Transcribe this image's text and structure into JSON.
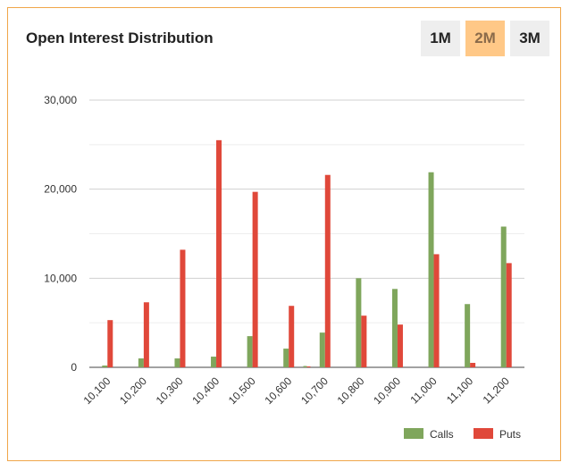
{
  "header": {
    "title": "Open Interest Distribution",
    "ranges": [
      {
        "label": "1M",
        "active": false
      },
      {
        "label": "2M",
        "active": true
      },
      {
        "label": "3M",
        "active": false
      }
    ]
  },
  "colors": {
    "calls": "#7fa65c",
    "puts": "#e0483a",
    "accent": "#f0a64a",
    "active_range_bg": "#ffc887"
  },
  "chart_data": {
    "type": "bar",
    "title": "Open Interest Distribution",
    "categories": [
      "10,100",
      "10,200",
      "10,300",
      "10,400",
      "10,500",
      "10,600",
      "10,700",
      "10,800",
      "10,900",
      "11,000",
      "11,100",
      "11,200"
    ],
    "series": [
      {
        "name": "Calls",
        "values": [
          200,
          1000,
          1000,
          1200,
          3500,
          2100,
          3900,
          10000,
          8800,
          21900,
          7100,
          15800
        ]
      },
      {
        "name": "Puts",
        "values": [
          5300,
          7300,
          13200,
          25500,
          19700,
          6900,
          21600,
          5800,
          4800,
          12700,
          500,
          11700
        ]
      }
    ],
    "extra_bars": [
      {
        "after_category": "10,600",
        "calls": 150,
        "puts": 100
      }
    ],
    "ylim": [
      0,
      30000
    ],
    "yticks": [
      "0",
      "10,000",
      "20,000",
      "30,000"
    ],
    "grid": true,
    "legend_position": "bottom-right"
  }
}
